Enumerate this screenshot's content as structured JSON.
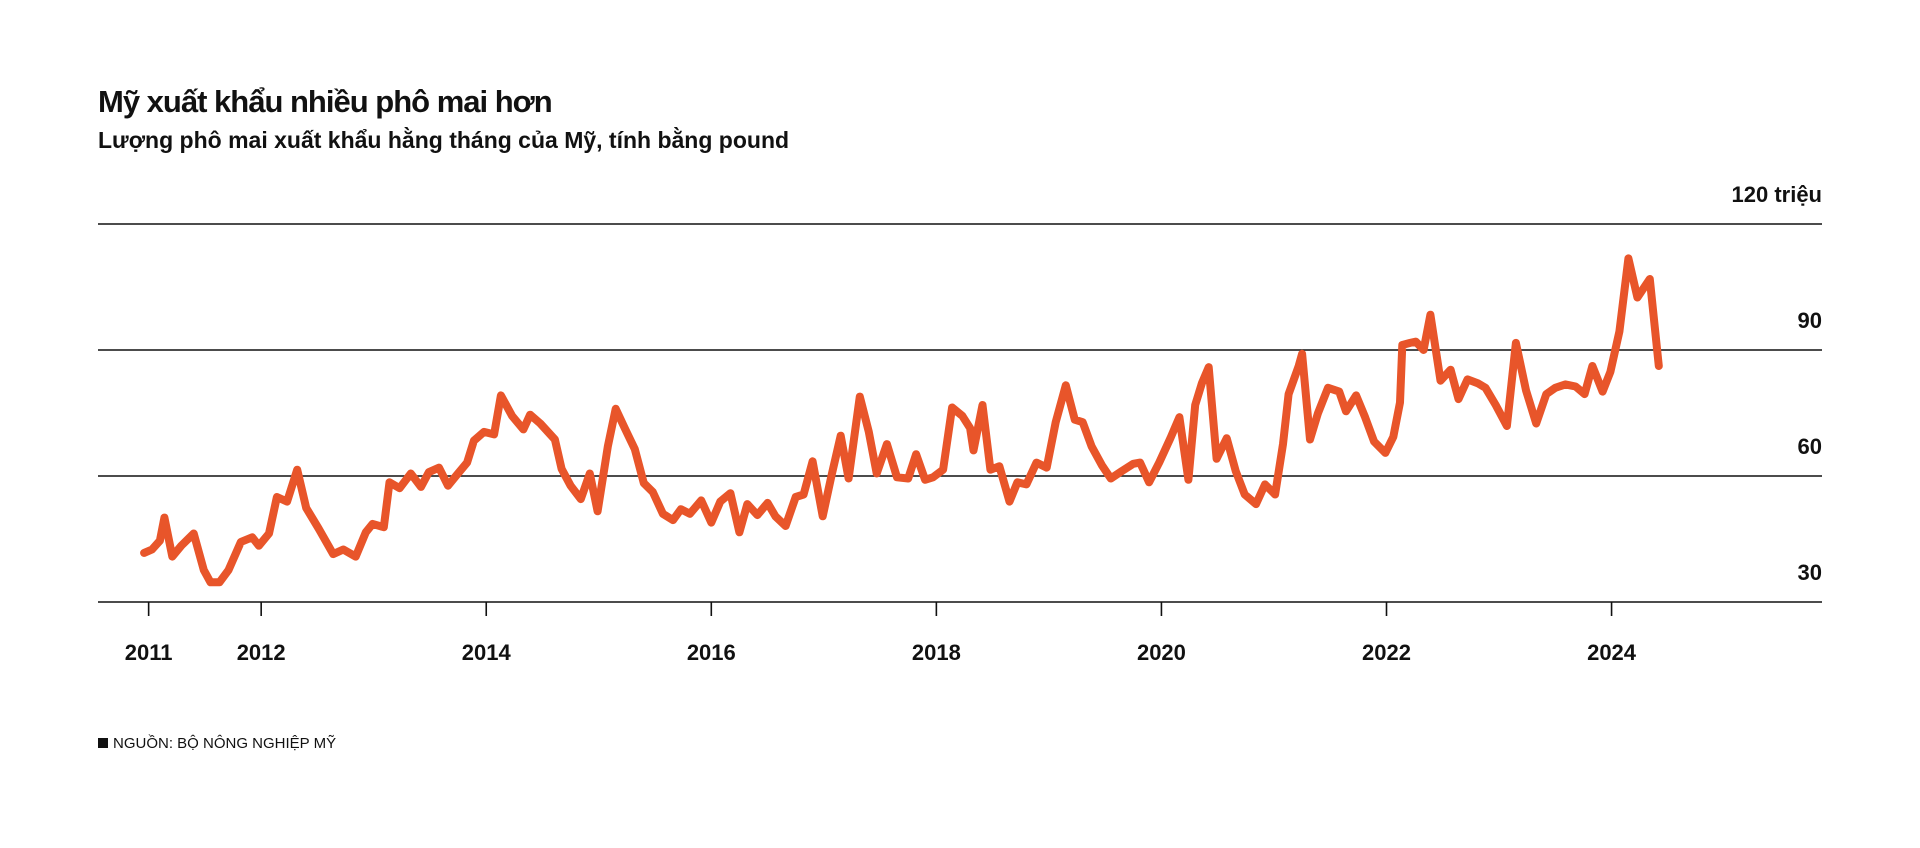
{
  "chart_data": {
    "type": "line",
    "title": "Mỹ xuất khẩu nhiều phô mai hơn",
    "subtitle": "Lượng phô mai xuất khẩu hằng tháng của Mỹ, tính bằng pound",
    "source": "NGUỒN: BỘ NÔNG NGHIỆP MỸ",
    "color": "#e8552a",
    "xlim": [
      2010.55,
      2025.87
    ],
    "xticks": [
      2011,
      2012,
      2014,
      2016,
      2018,
      2020,
      2022,
      2024
    ],
    "ylim": [
      30,
      120
    ],
    "yticks": [
      30,
      60,
      90,
      {
        "value": 120,
        "label": "120 triệu"
      }
    ],
    "grid": true,
    "x": [
      2010.96,
      2011.03,
      2011.1,
      2011.14,
      2011.21,
      2011.29,
      2011.4,
      2011.49,
      2011.55,
      2011.63,
      2011.71,
      2011.82,
      2011.92,
      2011.98,
      2012.07,
      2012.14,
      2012.23,
      2012.32,
      2012.4,
      2012.51,
      2012.64,
      2012.73,
      2012.84,
      2012.93,
      2012.99,
      2013.09,
      2013.14,
      2013.23,
      2013.33,
      2013.42,
      2013.49,
      2013.58,
      2013.66,
      2013.74,
      2013.83,
      2013.89,
      2013.98,
      2014.07,
      2014.13,
      2014.23,
      2014.33,
      2014.39,
      2014.48,
      2014.61,
      2014.67,
      2014.75,
      2014.84,
      2014.92,
      2014.99,
      2015.08,
      2015.15,
      2015.23,
      2015.32,
      2015.4,
      2015.48,
      2015.57,
      2015.66,
      2015.73,
      2015.81,
      2015.91,
      2016.0,
      2016.08,
      2016.17,
      2016.25,
      2016.32,
      2016.41,
      2016.5,
      2016.57,
      2016.66,
      2016.75,
      2016.82,
      2016.9,
      2016.99,
      2017.07,
      2017.15,
      2017.22,
      2017.32,
      2017.4,
      2017.47,
      2017.56,
      2017.65,
      2017.75,
      2017.82,
      2017.9,
      2017.97,
      2018.06,
      2018.14,
      2018.23,
      2018.3,
      2018.33,
      2018.41,
      2018.48,
      2018.56,
      2018.65,
      2018.72,
      2018.8,
      2018.89,
      2018.98,
      2019.06,
      2019.15,
      2019.23,
      2019.3,
      2019.38,
      2019.47,
      2019.55,
      2019.65,
      2019.75,
      2019.81,
      2019.89,
      2019.98,
      2020.08,
      2020.16,
      2020.24,
      2020.3,
      2020.36,
      2020.42,
      2020.49,
      2020.58,
      2020.66,
      2020.74,
      2020.84,
      2020.92,
      2021.01,
      2021.08,
      2021.13,
      2021.22,
      2021.25,
      2021.32,
      2021.39,
      2021.48,
      2021.58,
      2021.64,
      2021.73,
      2021.81,
      2021.89,
      2021.99,
      2022.06,
      2022.12,
      2022.14,
      2022.21,
      2022.26,
      2022.33,
      2022.39,
      2022.48,
      2022.57,
      2022.64,
      2022.72,
      2022.81,
      2022.88,
      2022.97,
      2023.07,
      2023.15,
      2023.24,
      2023.33,
      2023.42,
      2023.5,
      2023.59,
      2023.68,
      2023.76,
      2023.83,
      2023.92,
      2023.99,
      2024.07,
      2024.15,
      2024.23,
      2024.34,
      2024.42
    ],
    "values": [
      41.7,
      42.5,
      44.6,
      50.1,
      40.8,
      43.4,
      46.3,
      37.6,
      34.7,
      34.7,
      37.6,
      44.3,
      45.4,
      43.4,
      46.3,
      55.0,
      53.9,
      61.5,
      52.4,
      47.5,
      41.4,
      42.5,
      40.8,
      46.6,
      48.6,
      47.8,
      58.5,
      57.1,
      60.6,
      57.4,
      60.9,
      62.0,
      57.7,
      60.3,
      63.2,
      68.4,
      70.5,
      69.9,
      79.2,
      74.3,
      71.1,
      74.6,
      72.5,
      68.7,
      61.7,
      57.7,
      54.5,
      60.6,
      51.6,
      67.0,
      76.0,
      71.4,
      66.4,
      58.3,
      56.2,
      51.0,
      49.5,
      52.1,
      51.0,
      54.2,
      48.9,
      53.9,
      55.9,
      46.6,
      53.3,
      50.7,
      53.6,
      50.4,
      48.1,
      55.0,
      55.6,
      63.5,
      50.4,
      60.3,
      69.6,
      59.4,
      78.9,
      70.5,
      60.6,
      67.6,
      59.7,
      59.4,
      65.2,
      59.1,
      59.7,
      61.5,
      76.3,
      74.3,
      71.4,
      66.1,
      76.9,
      61.5,
      62.3,
      53.9,
      58.5,
      58.0,
      63.2,
      62.0,
      72.8,
      81.6,
      73.4,
      72.8,
      67.0,
      62.6,
      59.4,
      61.2,
      62.9,
      63.2,
      58.5,
      63.2,
      69.0,
      74.0,
      59.1,
      76.9,
      82.1,
      85.9,
      64.1,
      69.0,
      61.2,
      55.6,
      53.3,
      58.0,
      55.6,
      67.6,
      79.5,
      86.2,
      89.1,
      68.7,
      74.9,
      81.0,
      80.1,
      75.4,
      79.2,
      74.0,
      68.2,
      65.5,
      69.3,
      77.5,
      91.2,
      91.7,
      92.0,
      90.0,
      98.4,
      82.7,
      85.3,
      78.3,
      83.0,
      82.1,
      81.0,
      76.9,
      71.9,
      91.7,
      80.4,
      72.5,
      79.5,
      81.0,
      81.8,
      81.3,
      79.5,
      86.2,
      80.1,
      84.8,
      94.4,
      111.8,
      102.5,
      106.9,
      86.2
    ]
  }
}
